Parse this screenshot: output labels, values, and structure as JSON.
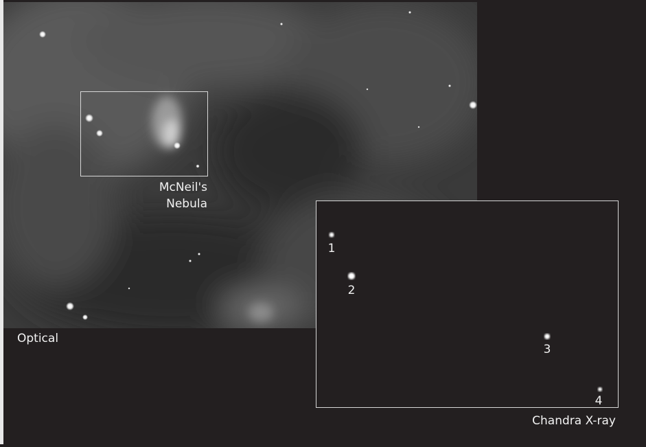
{
  "nebula_label": [
    "McNeil's",
    "Nebula"
  ],
  "optical_label": "Optical",
  "chandra_label": "Chandra X-ray",
  "sources": [
    {
      "label": "1"
    },
    {
      "label": "2"
    },
    {
      "label": "3"
    },
    {
      "label": "4"
    }
  ]
}
